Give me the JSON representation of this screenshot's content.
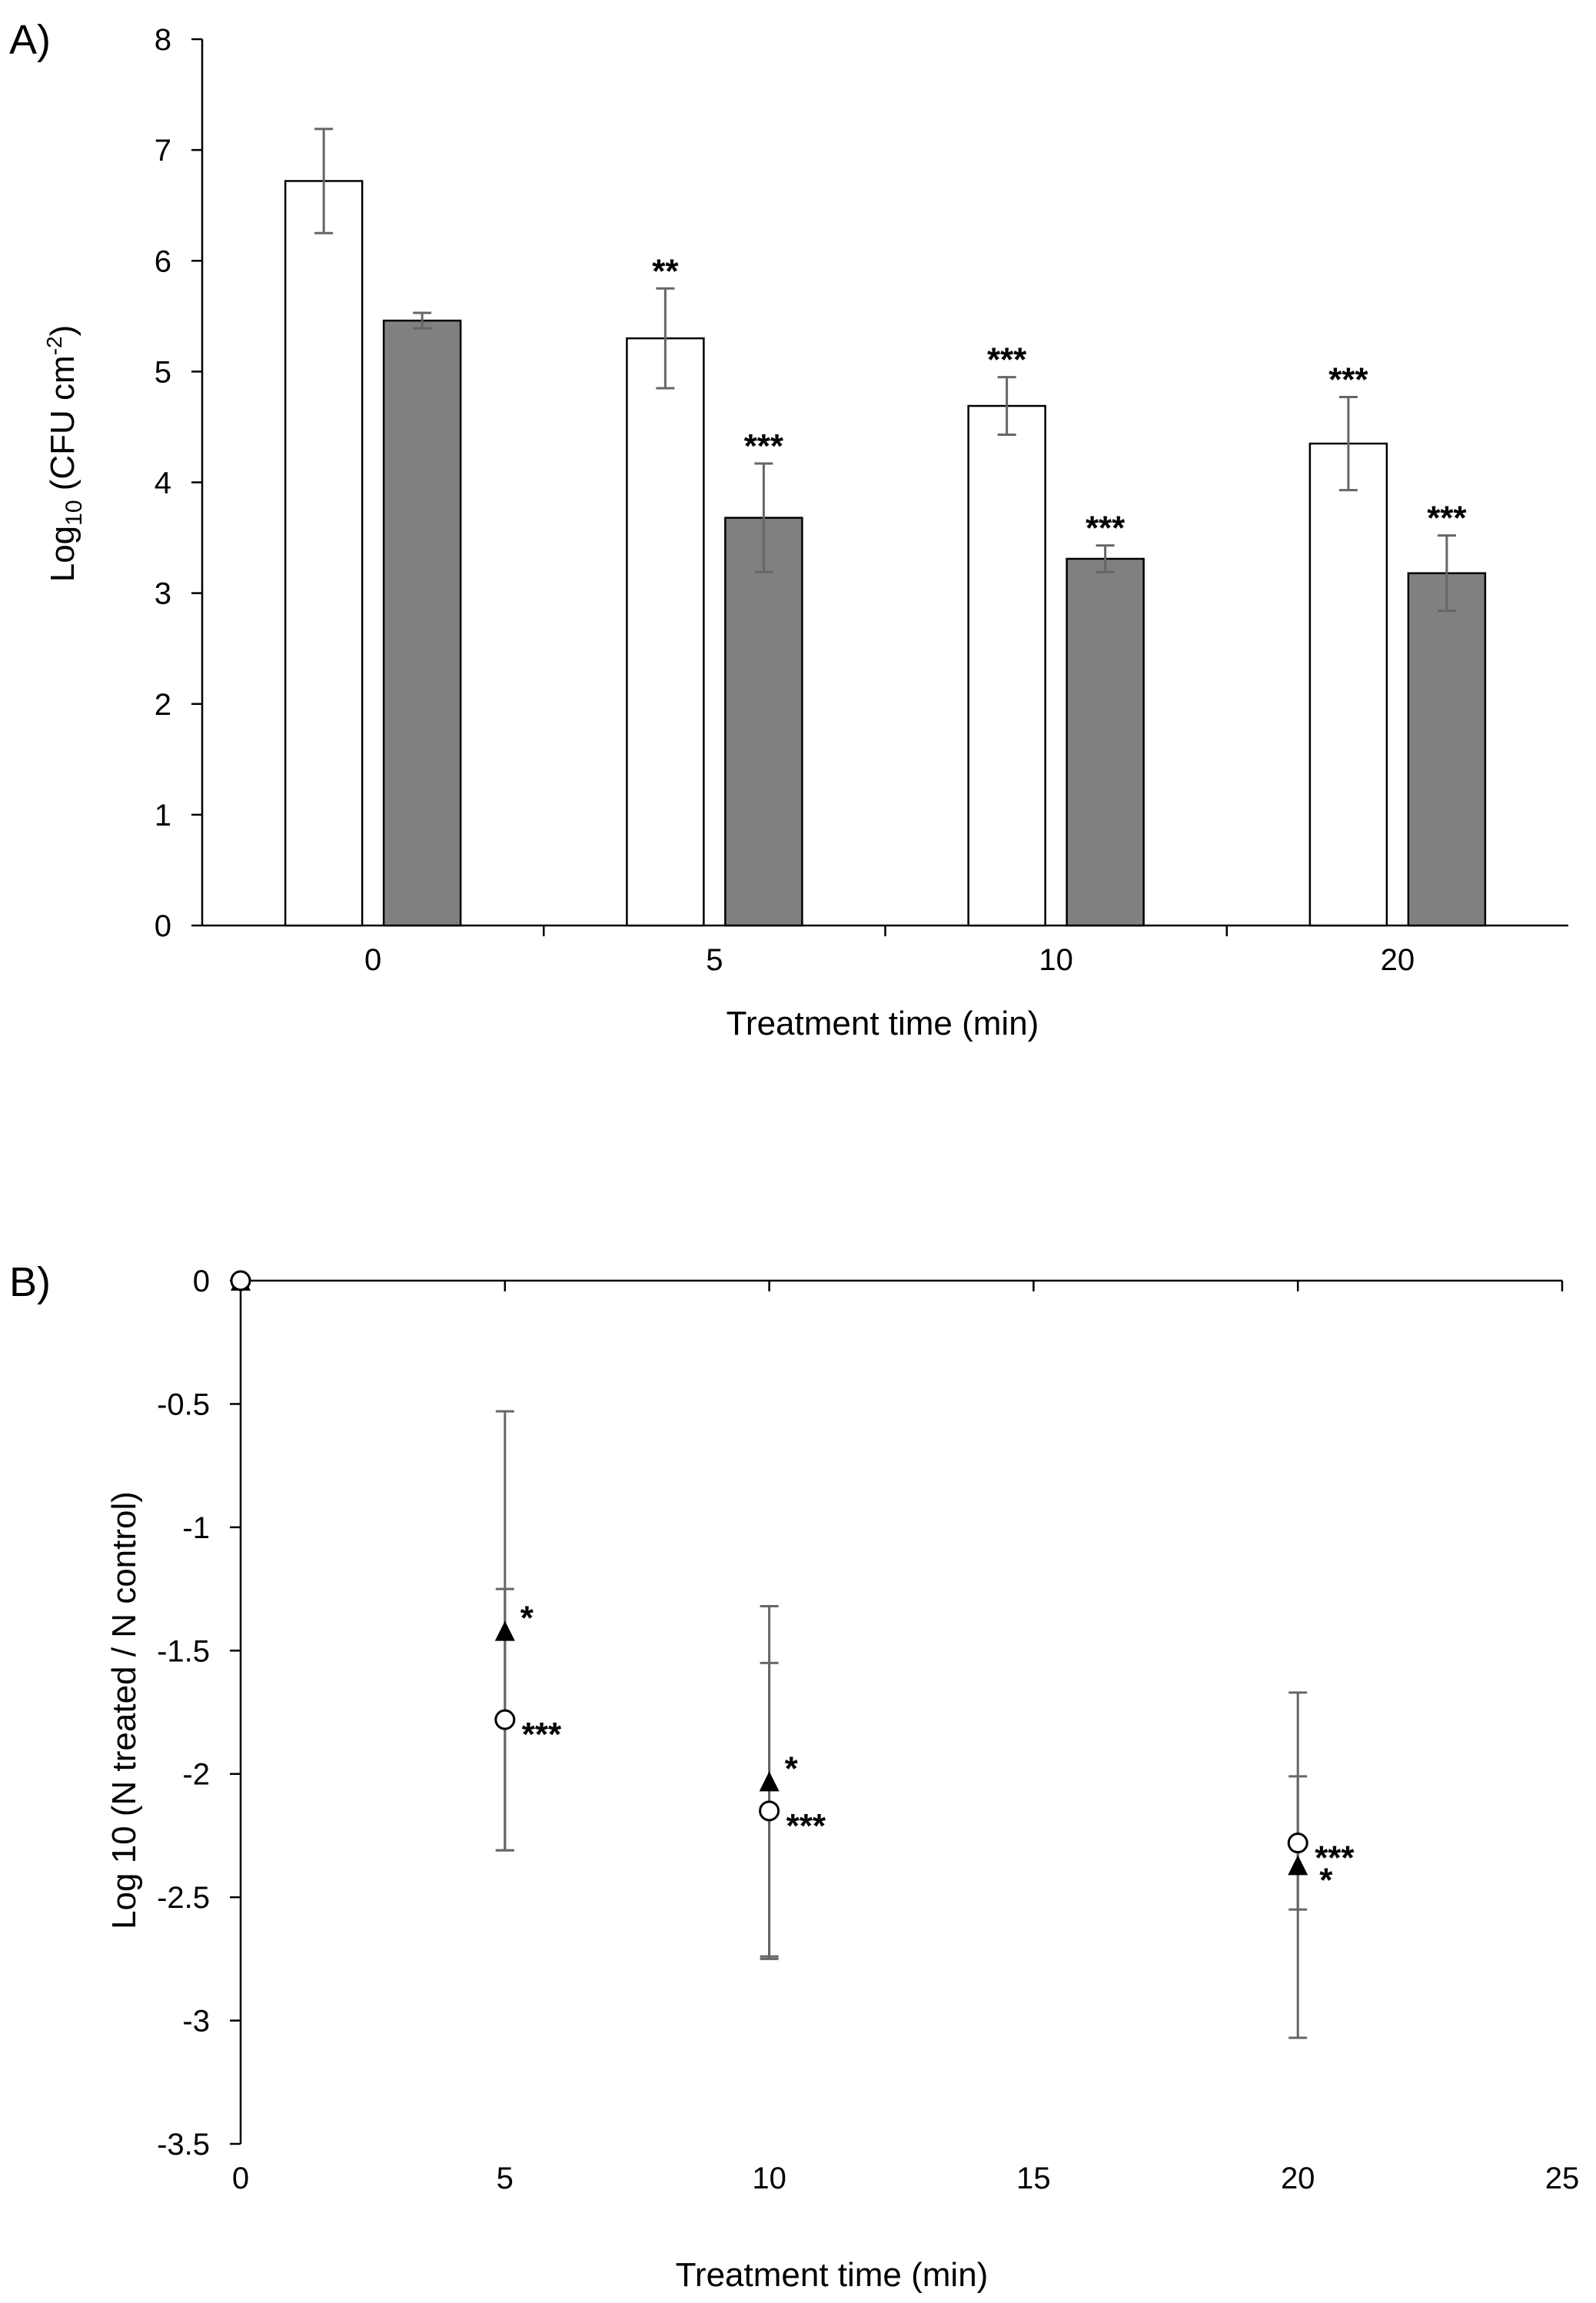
{
  "chart_data": [
    {
      "panel_label": "A)",
      "type": "bar",
      "categories": [
        "0",
        "5",
        "10",
        "20"
      ],
      "series": [
        {
          "values": [
            6.72,
            5.3,
            4.69,
            4.35
          ],
          "errors": [
            0.47,
            0.45,
            0.26,
            0.42
          ],
          "significance": [
            "",
            "**",
            "***",
            "***"
          ],
          "color": "#ffffff"
        },
        {
          "values": [
            5.46,
            3.68,
            3.31,
            3.18
          ],
          "errors": [
            0.07,
            0.49,
            0.12,
            0.34
          ],
          "significance": [
            "",
            "***",
            "***",
            "***"
          ],
          "color": "#808080"
        }
      ],
      "xlabel": "Treatment time (min)",
      "ylabel_main": "Log",
      "ylabel_sub": "10",
      "ylabel_rest": " (CFU cm",
      "ylabel_sup": "-2",
      "ylabel_end": ")",
      "ylim": [
        0,
        8
      ],
      "yticks": [
        "0",
        "1",
        "2",
        "3",
        "4",
        "5",
        "6",
        "7",
        "8"
      ],
      "grid": false,
      "error_bar_color": "#666666"
    },
    {
      "panel_label": "B)",
      "type": "scatter",
      "x": [
        0,
        5,
        10,
        20
      ],
      "series": [
        {
          "marker": "circle-open",
          "y": [
            0,
            -1.78,
            -2.15,
            -2.28
          ],
          "errors": [
            0,
            0.53,
            0.6,
            0.27
          ],
          "significance": [
            "",
            "***",
            "***",
            "***"
          ]
        },
        {
          "marker": "triangle-filled",
          "y": [
            0,
            -1.42,
            -2.03,
            -2.37
          ],
          "errors": [
            0,
            0.89,
            0.71,
            0.7
          ],
          "significance": [
            "",
            "*",
            "*",
            "*"
          ]
        }
      ],
      "xlabel": "Treatment time (min)",
      "ylabel": "Log 10 (N treated / N control)",
      "xlim": [
        0,
        25
      ],
      "ylim": [
        -3.5,
        0
      ],
      "xticks": [
        "0",
        "5",
        "10",
        "15",
        "20",
        "25"
      ],
      "yticks": [
        "0",
        "-0.5",
        "-1",
        "-1.5",
        "-2",
        "-2.5",
        "-3",
        "-3.5"
      ],
      "grid": false,
      "error_bar_color": "#666666"
    }
  ]
}
